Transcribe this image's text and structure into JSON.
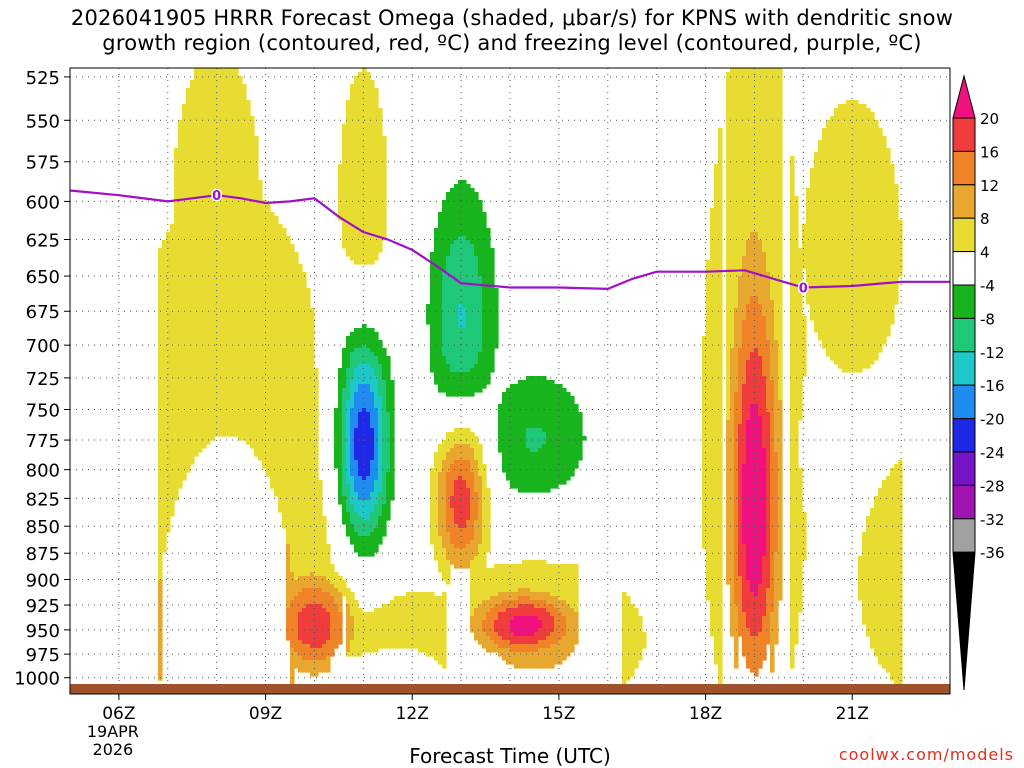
{
  "header": {
    "title_line1": "2026041905 HRRR Forecast Omega (shaded, μbar/s) for KPNS with dendritic snow",
    "title_line2": "growth region (contoured, red, ºC) and freezing level (contoured, purple, ºC)"
  },
  "footer": {
    "xlabel": "Forecast Time (UTC)",
    "credit": "coolwx.com/models"
  },
  "chart_data": {
    "type": "heatmap",
    "title": "2026041905 HRRR Forecast Omega (shaded, μbar/s) for KPNS with dendritic snow growth region (contoured, red, ºC) and freezing level (contoured, purple, ºC)",
    "xlabel": "Forecast Time (UTC)",
    "ylabel": "",
    "x_ticks": [
      "06Z",
      "09Z",
      "12Z",
      "15Z",
      "18Z",
      "21Z"
    ],
    "x_tick_hours": [
      6,
      9,
      12,
      15,
      18,
      21
    ],
    "x_date_label": [
      "19APR",
      "2026"
    ],
    "xlim": [
      5,
      23
    ],
    "y_ticks": [
      525,
      550,
      575,
      600,
      625,
      650,
      675,
      700,
      725,
      750,
      775,
      800,
      825,
      850,
      875,
      900,
      925,
      950,
      975,
      1000
    ],
    "ylim": [
      1010,
      520
    ],
    "y_scale": "log",
    "grid": true,
    "colorbar": {
      "labels": [
        20,
        16,
        12,
        8,
        4,
        -4,
        -8,
        -12,
        -16,
        -20,
        -24,
        -28,
        -32,
        -36
      ],
      "colors": [
        "#f0107f",
        "#f03c3c",
        "#f08228",
        "#e8a830",
        "#e8dc32",
        "#ffffff",
        "#18b41e",
        "#1ec878",
        "#1ec8c8",
        "#1e8cf0",
        "#1e28e6",
        "#7814c8",
        "#a014b4",
        "#a0a0a0",
        "#000000"
      ]
    },
    "freezing_level": {
      "color": "#a010c8",
      "label": "0",
      "points": [
        [
          5.0,
          593
        ],
        [
          6.0,
          596
        ],
        [
          7.0,
          600
        ],
        [
          7.5,
          598
        ],
        [
          8.0,
          596
        ],
        [
          8.5,
          598
        ],
        [
          9.0,
          601
        ],
        [
          9.5,
          600
        ],
        [
          10.0,
          598
        ],
        [
          10.5,
          610
        ],
        [
          11.0,
          620
        ],
        [
          11.5,
          625
        ],
        [
          12.0,
          632
        ],
        [
          12.5,
          643
        ],
        [
          13.0,
          655
        ],
        [
          14.0,
          658
        ],
        [
          15.0,
          658
        ],
        [
          16.0,
          659
        ],
        [
          16.5,
          652
        ],
        [
          17.0,
          647
        ],
        [
          18.0,
          647
        ],
        [
          18.8,
          646
        ],
        [
          19.5,
          653
        ],
        [
          20.0,
          658
        ],
        [
          21.0,
          657
        ],
        [
          22.0,
          654
        ],
        [
          23.0,
          654
        ]
      ],
      "label_points": [
        [
          8.0,
          596
        ],
        [
          20.0,
          658
        ]
      ]
    },
    "omega_fields": [
      {
        "name": "positive",
        "sign": 1,
        "value": 10,
        "cx": 8.2,
        "cy": 950,
        "sx": 3.0,
        "sy": 380
      },
      {
        "name": "positive",
        "sign": 1,
        "value": 9,
        "cx": 11.5,
        "cy": 1000,
        "sx": 3.5,
        "sy": 100
      },
      {
        "name": "positive",
        "sign": 1,
        "value": 8,
        "cx": 6.0,
        "cy": 960,
        "sx": 1.5,
        "sy": 220
      },
      {
        "name": "positive",
        "sign": 1,
        "value": 19,
        "cx": 10.0,
        "cy": 945,
        "sx": 0.9,
        "sy": 55
      },
      {
        "name": "positive",
        "sign": 1,
        "value": 22,
        "cx": 14.3,
        "cy": 945,
        "sx": 1.1,
        "sy": 35
      },
      {
        "name": "positive",
        "sign": 1,
        "value": 9,
        "cx": 14.5,
        "cy": 960,
        "sx": 2.5,
        "sy": 90
      },
      {
        "name": "positive",
        "sign": 1,
        "value": 19,
        "cx": 13.0,
        "cy": 825,
        "sx": 0.55,
        "sy": 70
      },
      {
        "name": "positive",
        "sign": 1,
        "value": 24,
        "cx": 19.0,
        "cy": 830,
        "sx": 0.55,
        "sy": 200
      },
      {
        "name": "positive",
        "sign": 1,
        "value": 9,
        "cx": 19.0,
        "cy": 780,
        "sx": 1.2,
        "sy": 330
      },
      {
        "name": "positive",
        "sign": 1,
        "value": 8,
        "cx": 22.8,
        "cy": 900,
        "sx": 2.0,
        "sy": 150
      },
      {
        "name": "positive",
        "sign": 1,
        "value": 7,
        "cx": 8.0,
        "cy": 600,
        "sx": 1.2,
        "sy": 120
      },
      {
        "name": "positive",
        "sign": 1,
        "value": 7,
        "cx": 11.0,
        "cy": 610,
        "sx": 0.7,
        "sy": 120
      },
      {
        "name": "positive",
        "sign": 1,
        "value": 8,
        "cx": 21.0,
        "cy": 630,
        "sx": 1.2,
        "sy": 110
      },
      {
        "name": "negative",
        "sign": -1,
        "value": 25,
        "cx": 11.0,
        "cy": 780,
        "sx": 0.55,
        "sy": 90
      },
      {
        "name": "negative",
        "sign": -1,
        "value": 12,
        "cx": 13.0,
        "cy": 680,
        "sx": 0.7,
        "sy": 90
      },
      {
        "name": "negative",
        "sign": -1,
        "value": 8,
        "cx": 14.5,
        "cy": 775,
        "sx": 1.2,
        "sy": 60
      },
      {
        "name": "negative",
        "sign": -1,
        "value": 5,
        "cx": 20.3,
        "cy": 780,
        "sx": 0.3,
        "sy": 40
      }
    ]
  }
}
